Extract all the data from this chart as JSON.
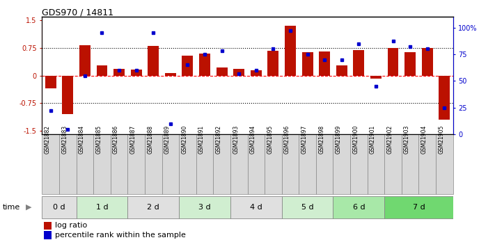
{
  "title": "GDS970 / 14811",
  "samples": [
    "GSM21882",
    "GSM21883",
    "GSM21884",
    "GSM21885",
    "GSM21886",
    "GSM21887",
    "GSM21888",
    "GSM21889",
    "GSM21890",
    "GSM21891",
    "GSM21892",
    "GSM21893",
    "GSM21894",
    "GSM21895",
    "GSM21896",
    "GSM21897",
    "GSM21898",
    "GSM21899",
    "GSM21900",
    "GSM21901",
    "GSM21902",
    "GSM21903",
    "GSM21904",
    "GSM21905"
  ],
  "log_ratio": [
    -0.35,
    -1.05,
    0.82,
    0.28,
    0.18,
    0.17,
    0.8,
    0.07,
    0.55,
    0.6,
    0.22,
    0.18,
    0.15,
    0.68,
    1.35,
    0.64,
    0.65,
    0.28,
    0.7,
    -0.09,
    0.75,
    0.63,
    0.75,
    -1.2
  ],
  "pct_rank": [
    22,
    5,
    55,
    95,
    60,
    60,
    95,
    10,
    65,
    75,
    78,
    57,
    60,
    80,
    97,
    75,
    70,
    70,
    85,
    45,
    87,
    82,
    80,
    25
  ],
  "time_groups": [
    {
      "label": "0 d",
      "start": 0,
      "end": 2,
      "color": "#e0e0e0"
    },
    {
      "label": "1 d",
      "start": 2,
      "end": 5,
      "color": "#d0eed0"
    },
    {
      "label": "2 d",
      "start": 5,
      "end": 8,
      "color": "#e0e0e0"
    },
    {
      "label": "3 d",
      "start": 8,
      "end": 11,
      "color": "#d0eed0"
    },
    {
      "label": "4 d",
      "start": 11,
      "end": 14,
      "color": "#e0e0e0"
    },
    {
      "label": "5 d",
      "start": 14,
      "end": 17,
      "color": "#d0eed0"
    },
    {
      "label": "6 d",
      "start": 17,
      "end": 20,
      "color": "#a8e8a8"
    },
    {
      "label": "7 d",
      "start": 20,
      "end": 24,
      "color": "#70d870"
    }
  ],
  "sample_cell_color": "#d8d8d8",
  "bar_color": "#bb1100",
  "dot_color": "#0000cc",
  "ylim_left": [
    -1.6,
    1.6
  ],
  "ylim_right": [
    0,
    110
  ],
  "yticks_left": [
    -1.5,
    -0.75,
    0,
    0.75,
    1.5
  ],
  "ytick_labels_left": [
    "-1.5",
    "-0.75",
    "0",
    "0.75",
    "1.5"
  ],
  "yticks_right": [
    0,
    25,
    50,
    75,
    100
  ],
  "ytick_labels_right": [
    "0",
    "25",
    "50",
    "75",
    "100%"
  ],
  "legend_log_ratio": "log ratio",
  "legend_pct": "percentile rank within the sample"
}
